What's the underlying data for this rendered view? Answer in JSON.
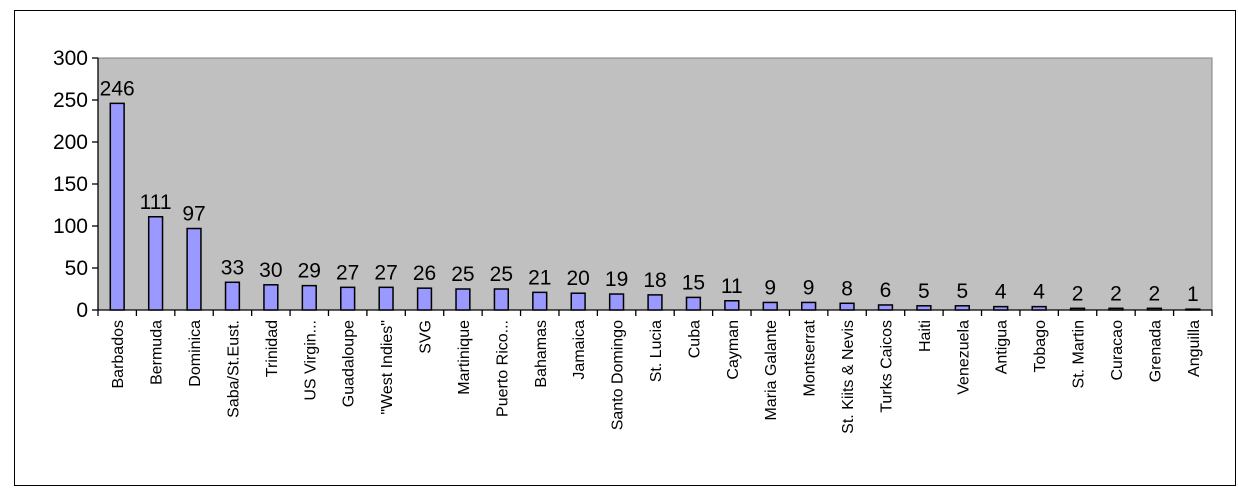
{
  "chart_data": {
    "type": "bar",
    "title": "",
    "xlabel": "",
    "ylabel": "",
    "ylim": [
      0,
      300
    ],
    "yticks": [
      0,
      50,
      100,
      150,
      200,
      250,
      300
    ],
    "grid": false,
    "legend": "none",
    "colors": {
      "bar_fill": "#9999ff",
      "bar_stroke": "#000000",
      "plot_background": "#c0c0c0"
    },
    "categories": [
      "Barbados",
      "Bermuda",
      "Dominica",
      "Saba/St.Eust.",
      "Trinidad",
      "US Virgin...",
      "Guadaloupe",
      "\"West Indies\"",
      "SVG",
      "Martinique",
      "Puerto Rico...",
      "Bahamas",
      "Jamaica",
      "Santo Domingo",
      "St. Lucia",
      "Cuba",
      "Cayman",
      "Maria Galante",
      "Montserrat",
      "St. Kiits & Nevis",
      "Turks Caicos",
      "Haiti",
      "Venezuela",
      "Antigua",
      "Tobago",
      "St. Martin",
      "Curacao",
      "Grenada",
      "Anguilla"
    ],
    "values": [
      246,
      111,
      97,
      33,
      30,
      29,
      27,
      27,
      26,
      25,
      25,
      21,
      20,
      19,
      18,
      15,
      11,
      9,
      9,
      8,
      6,
      5,
      5,
      4,
      4,
      2,
      2,
      2,
      1
    ]
  }
}
